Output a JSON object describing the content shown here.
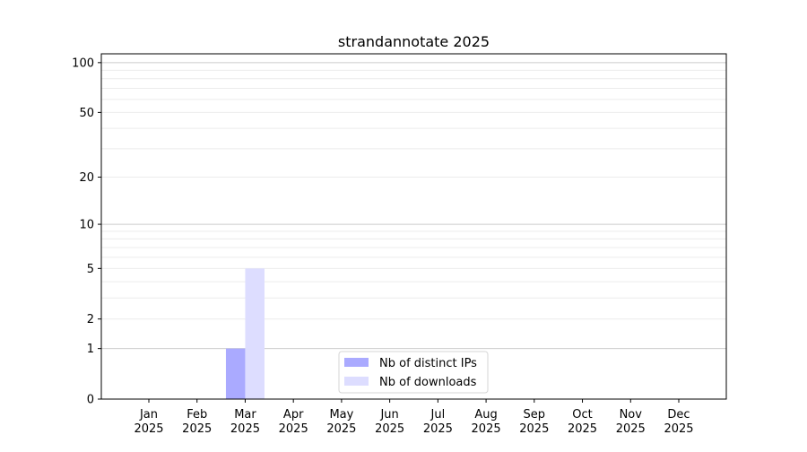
{
  "chart_data": {
    "type": "bar",
    "title": "strandannotate 2025",
    "xlabel": "",
    "ylabel": "",
    "yscale": "log(1+y)",
    "ylim": [
      0,
      113
    ],
    "yticks": [
      0,
      1,
      2,
      5,
      10,
      20,
      50,
      100
    ],
    "grid": true,
    "legend_position": "lower-center",
    "categories": [
      "Jan\n2025",
      "Feb\n2025",
      "Mar\n2025",
      "Apr\n2025",
      "May\n2025",
      "Jun\n2025",
      "Jul\n2025",
      "Aug\n2025",
      "Sep\n2025",
      "Oct\n2025",
      "Nov\n2025",
      "Dec\n2025"
    ],
    "series": [
      {
        "name": "Nb of distinct IPs",
        "color": "#aaaaff",
        "values": [
          0,
          0,
          1,
          0,
          0,
          0,
          0,
          0,
          0,
          0,
          0,
          0
        ]
      },
      {
        "name": "Nb of downloads",
        "color": "#ddddff",
        "values": [
          0,
          0,
          5,
          0,
          0,
          0,
          0,
          0,
          0,
          0,
          0,
          0
        ]
      }
    ]
  }
}
